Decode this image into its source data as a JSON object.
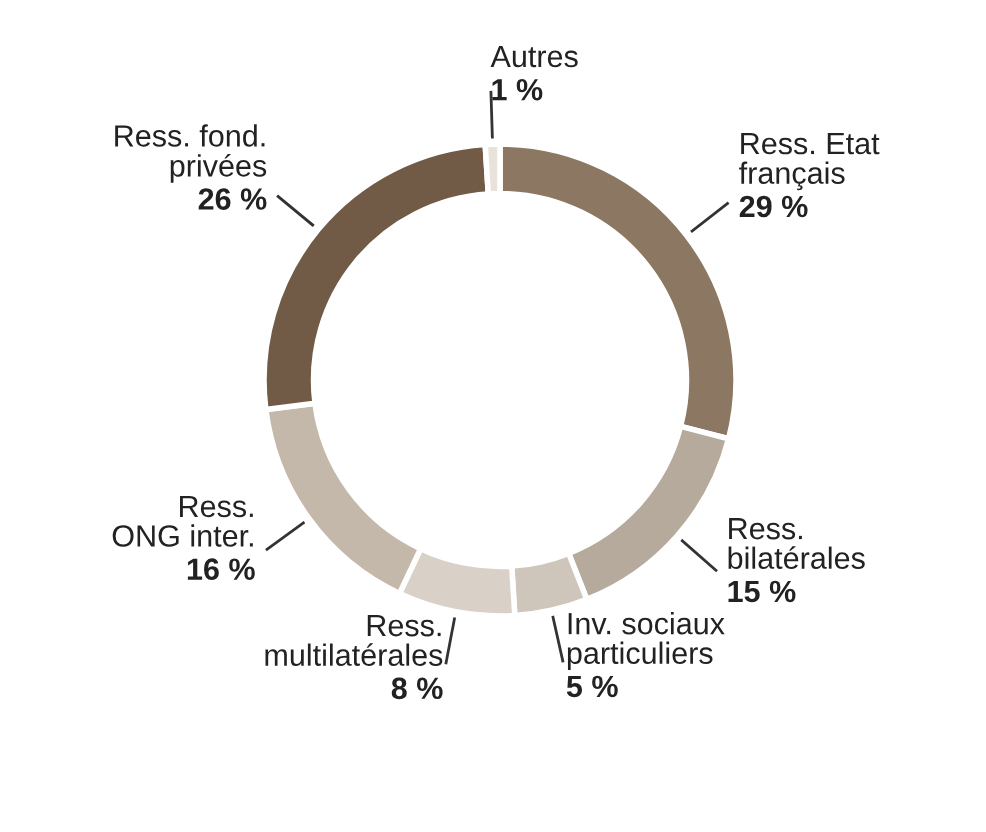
{
  "chart_data": {
    "type": "donut",
    "categories": [
      "Ress. Etat\nfrançais",
      "Ress.\nbilatérales",
      "Inv. sociaux\nparticuliers",
      "Ress.\nmultilatérales",
      "Ress.\nONG inter.",
      "Ress. fond.\nprivées",
      "Autres"
    ],
    "values": [
      29,
      15,
      5,
      8,
      16,
      26,
      1
    ],
    "value_labels": [
      "29 %",
      "15 %",
      "5 %",
      "8 %",
      "16 %",
      "26 %",
      "1 %"
    ],
    "colors": [
      "#8c7762",
      "#b6aa9c",
      "#cfc6bb",
      "#d9d0c7",
      "#c4b8ab",
      "#715b46",
      "#e9e2da"
    ],
    "legend": false
  }
}
